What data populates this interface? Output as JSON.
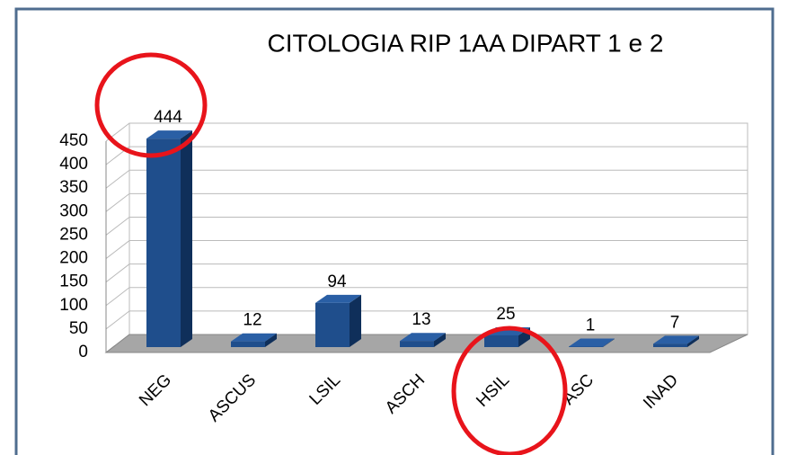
{
  "chart_data": {
    "type": "bar",
    "title": "CITOLOGIA RIP 1AA DIPART 1 e 2",
    "categories": [
      "NEG",
      "ASCUS",
      "LSIL",
      "ASCH",
      "HSIL",
      "ASC",
      "INAD"
    ],
    "values": [
      444,
      12,
      94,
      13,
      25,
      1,
      7
    ],
    "color": "#1f4e8c",
    "ylim": [
      0,
      450
    ],
    "yticks": [
      0,
      50,
      100,
      150,
      200,
      250,
      300,
      350,
      400,
      450
    ],
    "grid": true
  }
}
